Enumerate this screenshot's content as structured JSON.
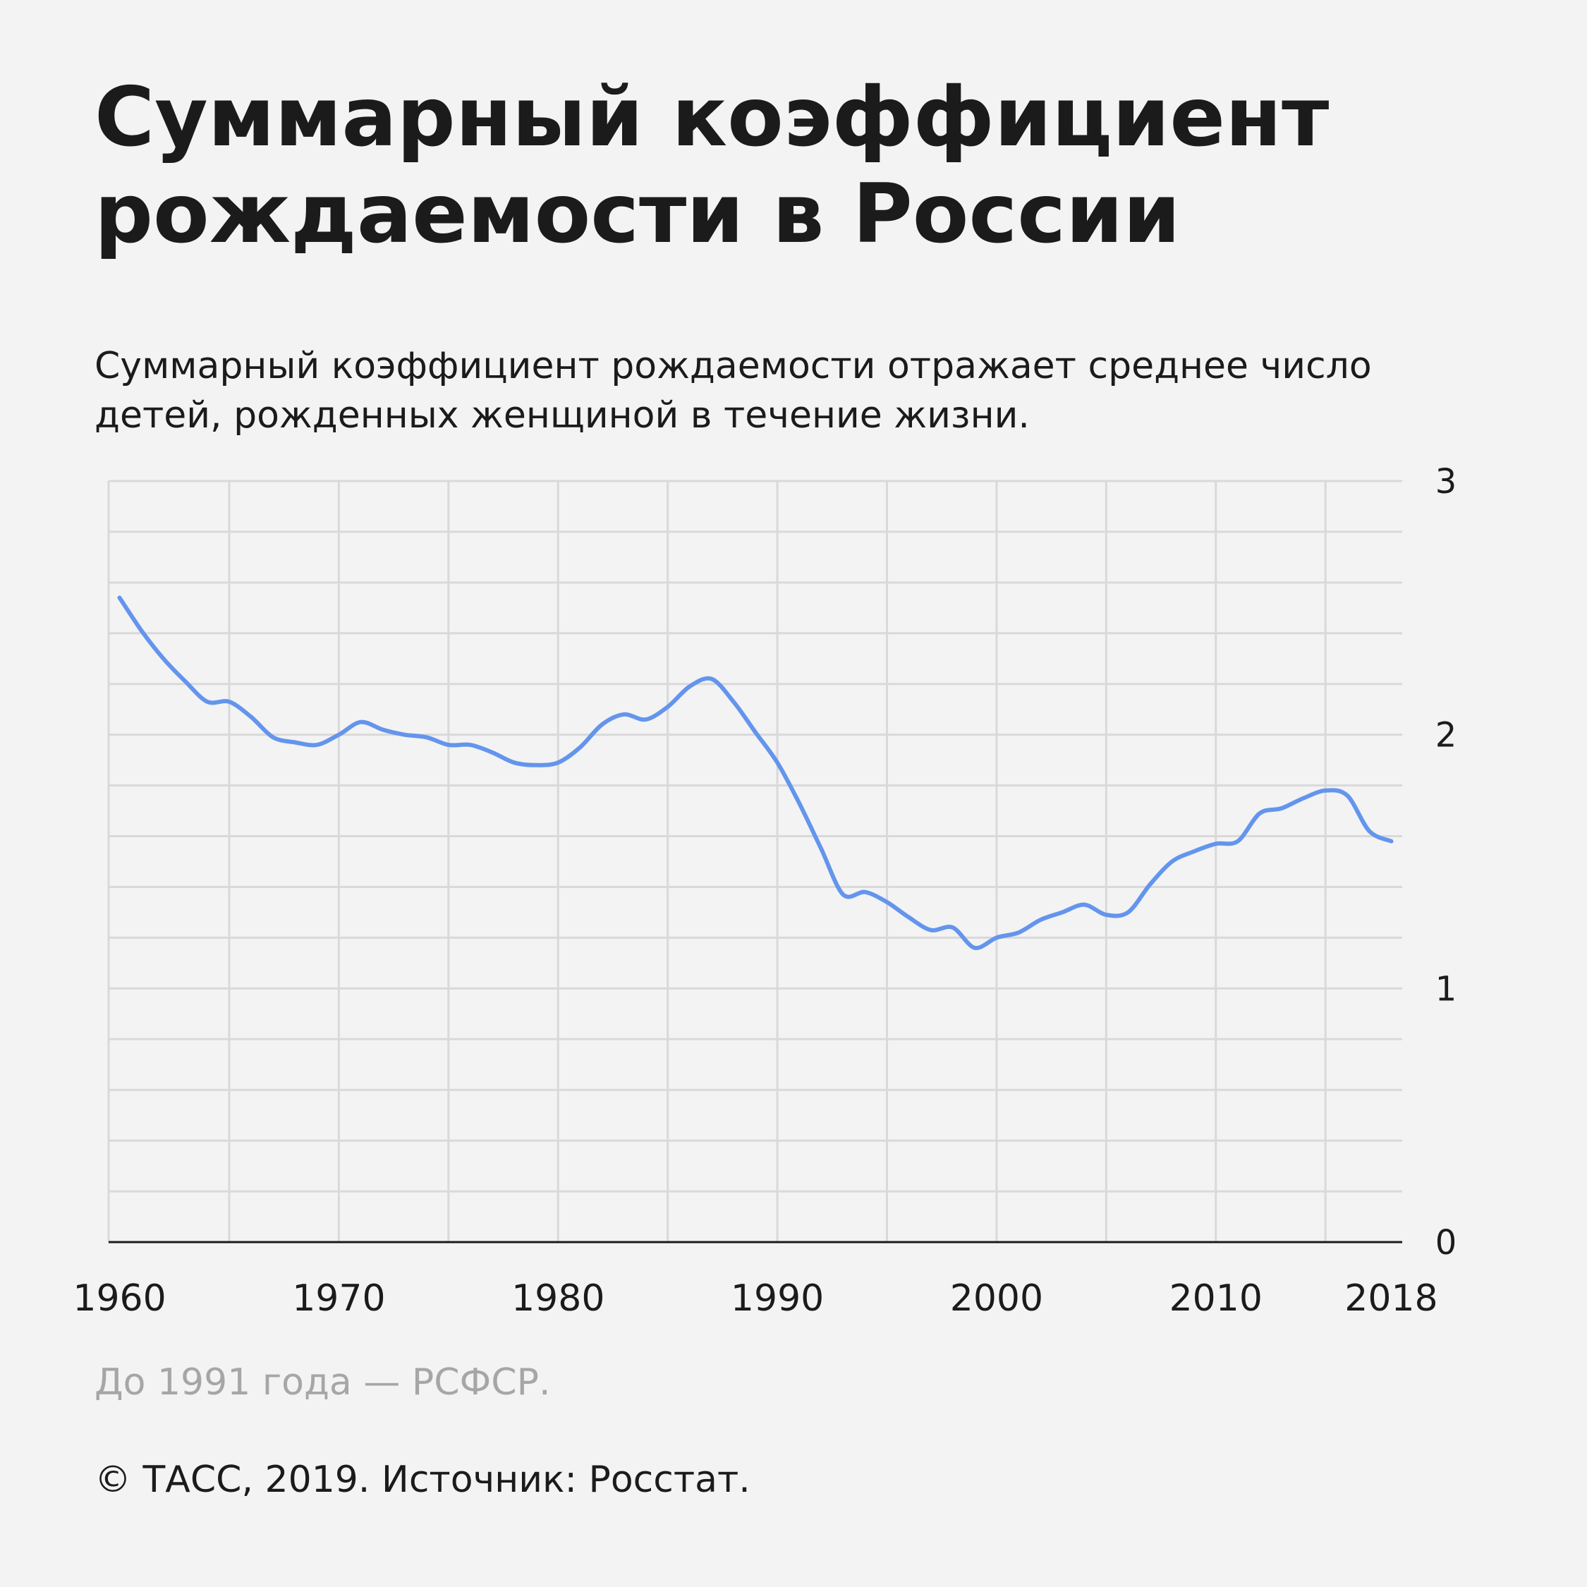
{
  "title": "Суммарный коэффициент рождаемости в России",
  "subtitle": "Суммарный коэффициент рождаемости отражает среднее число детей, рожденных женщиной в течение жизни.",
  "note": "До 1991 года — РСФСР.",
  "source": "© ТАСС, 2019. Источник: Росстат.",
  "colors": {
    "line": "#6495ed",
    "grid": "#d9d9d9",
    "axis": "#1b1b1b",
    "background": "#f3f3f3"
  },
  "chart_data": {
    "type": "line",
    "title": "Суммарный коэффициент рождаемости в России",
    "xlabel": "",
    "ylabel": "",
    "xlim": [
      1959.5,
      2018.5
    ],
    "ylim": [
      0,
      3
    ],
    "x_ticks": [
      1960,
      1970,
      1980,
      1990,
      2000,
      2010,
      2018
    ],
    "y_ticks": [
      0,
      1,
      2,
      3
    ],
    "y_axis_position": "right",
    "grid": true,
    "series": [
      {
        "x": [
          1960,
          1961,
          1962,
          1963,
          1964,
          1965,
          1966,
          1967,
          1968,
          1969,
          1970,
          1971,
          1972,
          1973,
          1974,
          1975,
          1976,
          1977,
          1978,
          1979,
          1980,
          1981,
          1982,
          1983,
          1984,
          1985,
          1986,
          1987,
          1988,
          1989,
          1990,
          1991,
          1992,
          1993,
          1994,
          1995,
          1996,
          1997,
          1998,
          1999,
          2000,
          2001,
          2002,
          2003,
          2004,
          2005,
          2006,
          2007,
          2008,
          2009,
          2010,
          2011,
          2012,
          2013,
          2014,
          2015,
          2016,
          2017,
          2018
        ],
        "values": [
          2.54,
          2.41,
          2.3,
          2.21,
          2.13,
          2.13,
          2.07,
          1.99,
          1.97,
          1.96,
          2.0,
          2.05,
          2.02,
          2.0,
          1.99,
          1.96,
          1.96,
          1.93,
          1.89,
          1.88,
          1.89,
          1.95,
          2.04,
          2.08,
          2.06,
          2.11,
          2.19,
          2.22,
          2.13,
          2.01,
          1.89,
          1.73,
          1.55,
          1.37,
          1.38,
          1.34,
          1.28,
          1.23,
          1.24,
          1.16,
          1.2,
          1.22,
          1.27,
          1.3,
          1.33,
          1.29,
          1.3,
          1.41,
          1.5,
          1.54,
          1.57,
          1.58,
          1.69,
          1.71,
          1.75,
          1.78,
          1.76,
          1.62,
          1.58
        ]
      }
    ]
  }
}
